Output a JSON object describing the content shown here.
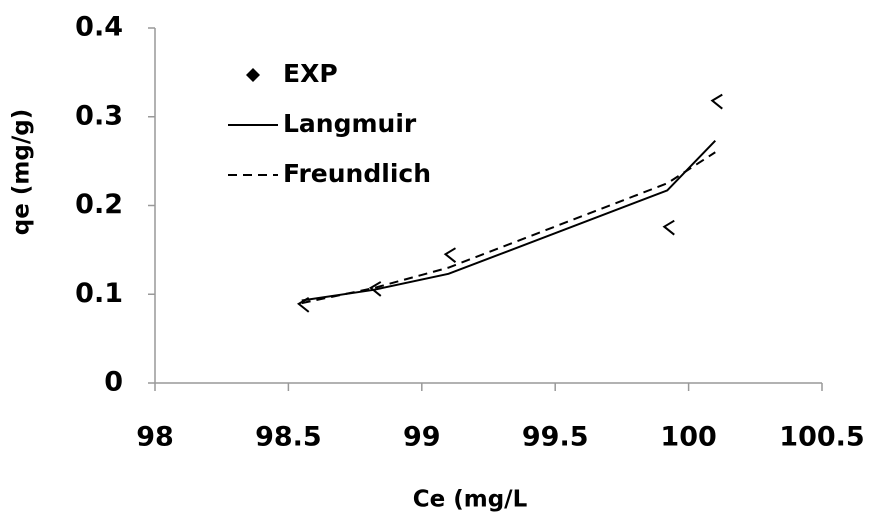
{
  "chart_data": {
    "type": "line",
    "xlabel": "Ce (mg/L",
    "ylabel": "qe (mg/g)",
    "x": [
      98.55,
      98.82,
      99.1,
      99.92,
      100.1
    ],
    "series": [
      {
        "name": "EXP",
        "color": "#000000",
        "style": "markers",
        "values": [
          0.088,
          0.106,
          0.144,
          0.175,
          0.317
        ]
      },
      {
        "name": "Langmuir",
        "color": "#000000",
        "style": "solid",
        "values": [
          0.093,
          0.105,
          0.123,
          0.217,
          0.273
        ]
      },
      {
        "name": "Freundlich",
        "color": "#000000",
        "style": "dashed",
        "values": [
          0.09,
          0.107,
          0.13,
          0.225,
          0.26
        ]
      }
    ],
    "xlim": [
      98,
      100.5
    ],
    "xticks": [
      98,
      98.5,
      99,
      99.5,
      100,
      100.5
    ],
    "ylim": [
      0,
      0.4
    ],
    "yticks": [
      0,
      0.1,
      0.2,
      0.3,
      0.4
    ],
    "grid": false,
    "legend": "upper left"
  }
}
